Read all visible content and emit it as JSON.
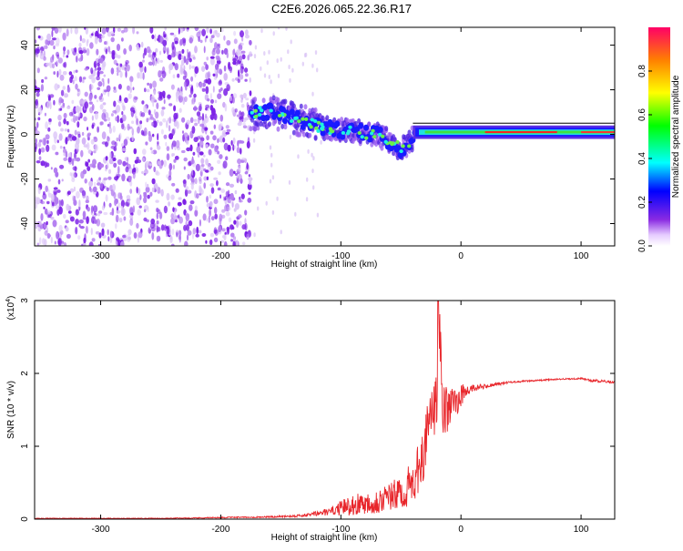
{
  "title": "C2E6.2026.065.22.36.R17",
  "chart_data": [
    {
      "type": "heatmap",
      "name": "spectrogram",
      "xlabel": "Height of straight line (km)",
      "ylabel": "Frequency (Hz)",
      "xlim": [
        -355,
        128
      ],
      "ylim": [
        -50,
        48
      ],
      "xticks": [
        -300,
        -200,
        -100,
        0,
        100
      ],
      "yticks": [
        -40,
        -20,
        0,
        20,
        40
      ],
      "noise_region_x": [
        -355,
        -175
      ],
      "ridge": [
        {
          "x": -175,
          "y": 9
        },
        {
          "x": -160,
          "y": 10
        },
        {
          "x": -145,
          "y": 8
        },
        {
          "x": -130,
          "y": 6
        },
        {
          "x": -115,
          "y": 3
        },
        {
          "x": -100,
          "y": 2
        },
        {
          "x": -85,
          "y": 1
        },
        {
          "x": -70,
          "y": 0
        },
        {
          "x": -60,
          "y": -3
        },
        {
          "x": -50,
          "y": -7
        },
        {
          "x": -42,
          "y": -3
        },
        {
          "x": -35,
          "y": 1
        },
        {
          "x": -20,
          "y": 1
        },
        {
          "x": 0,
          "y": 0
        },
        {
          "x": 20,
          "y": 1
        },
        {
          "x": 60,
          "y": 1
        },
        {
          "x": 80,
          "y": 1
        },
        {
          "x": 90,
          "y": 2
        },
        {
          "x": 100,
          "y": 1
        },
        {
          "x": 128,
          "y": 1
        }
      ],
      "colorbar": {
        "label": "Normalized spectral amplitude",
        "range": [
          0,
          1
        ],
        "ticks": [
          "0.0",
          "0.2",
          "0.4",
          "0.6",
          "0.8"
        ]
      }
    },
    {
      "type": "line",
      "name": "snr",
      "xlabel": "Height of straight line (km)",
      "ylabel": "SNR (10 * v/v)",
      "multiplier": "(x10",
      "multiplier_exp": "4",
      "xlim": [
        -355,
        128
      ],
      "ylim": [
        0,
        3
      ],
      "xticks": [
        -300,
        -200,
        -100,
        0,
        100
      ],
      "yticks": [
        0,
        1,
        2,
        3
      ],
      "color": "#e8262b",
      "series": [
        {
          "name": "SNR",
          "x": [
            -355,
            -250,
            -160,
            -130,
            -110,
            -100,
            -90,
            -80,
            -70,
            -60,
            -50,
            -40,
            -35,
            -30,
            -25,
            -20,
            -19,
            -15,
            -10,
            -5,
            0,
            5,
            10,
            20,
            30,
            40,
            60,
            80,
            100,
            110,
            128
          ],
          "y": [
            0.01,
            0.01,
            0.03,
            0.05,
            0.1,
            0.15,
            0.2,
            0.22,
            0.25,
            0.3,
            0.35,
            0.5,
            0.7,
            1.0,
            1.4,
            1.6,
            3.0,
            1.5,
            1.5,
            1.6,
            1.7,
            1.75,
            1.8,
            1.82,
            1.85,
            1.88,
            1.9,
            1.92,
            1.93,
            1.9,
            1.88
          ],
          "noise_amp": [
            0.005,
            0.005,
            0.01,
            0.02,
            0.05,
            0.1,
            0.15,
            0.15,
            0.18,
            0.2,
            0.25,
            0.3,
            0.35,
            0.4,
            0.4,
            0.4,
            0.4,
            0.35,
            0.3,
            0.25,
            0.15,
            0.1,
            0.06,
            0.03,
            0.02,
            0.015,
            0.01,
            0.01,
            0.01,
            0.02,
            0.015
          ]
        }
      ]
    }
  ]
}
